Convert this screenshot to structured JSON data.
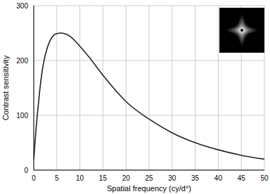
{
  "chart_data": {
    "type": "line",
    "x_label": "Spatial frequency (cy/d°)",
    "y_label": "Contrast sensitivity",
    "x": [
      0,
      0.5,
      1,
      1.5,
      2,
      3,
      4,
      5,
      6,
      7,
      8,
      10,
      12,
      15,
      18,
      20,
      25,
      30,
      35,
      40,
      45,
      50
    ],
    "values": [
      20,
      75,
      120,
      160,
      190,
      225,
      243,
      249,
      250,
      248,
      243,
      226,
      206,
      173,
      143,
      125,
      93,
      68,
      50,
      37,
      27,
      20
    ],
    "color": "#222222",
    "xlim": [
      0,
      50
    ],
    "xticks": [
      0,
      5,
      10,
      15,
      20,
      25,
      30,
      35,
      40,
      45,
      50
    ],
    "ylim": [
      0,
      300
    ],
    "yticks": [
      0,
      100,
      200,
      300
    ],
    "grid": true
  }
}
